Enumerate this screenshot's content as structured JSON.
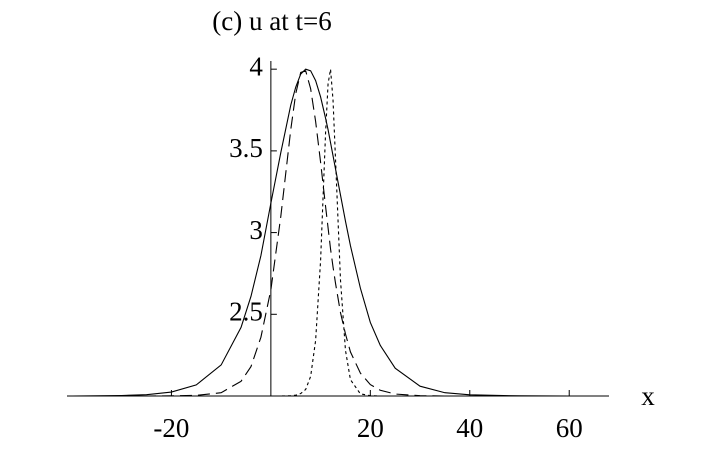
{
  "chart_data": {
    "type": "line",
    "title": "(c) u at t=6",
    "x_label": "x",
    "x": [
      -40,
      -35,
      -30,
      -25,
      -20,
      -15,
      -10,
      -6,
      -4,
      -2,
      0,
      2,
      4,
      5,
      6,
      7,
      8,
      9,
      10,
      11,
      11.5,
      12,
      12.5,
      13,
      14,
      15,
      16,
      18,
      20,
      22,
      25,
      30,
      35,
      40,
      50,
      60,
      68
    ],
    "series": [
      {
        "color": "#000000",
        "style": "solid",
        "values": [
          2.0,
          2.001,
          2.003,
          2.008,
          2.024,
          2.068,
          2.19,
          2.42,
          2.61,
          2.86,
          3.18,
          3.49,
          3.78,
          3.89,
          3.97,
          4.0,
          3.99,
          3.93,
          3.83,
          3.7,
          3.63,
          3.55,
          3.47,
          3.39,
          3.23,
          3.07,
          2.92,
          2.66,
          2.45,
          2.31,
          2.17,
          2.06,
          2.02,
          2.007,
          2.001,
          2.0,
          2.0
        ]
      },
      {
        "color": "#000000",
        "style": "dashed",
        "values": [
          2.0,
          2.0,
          2.0,
          2.0,
          2.001,
          2.004,
          2.02,
          2.09,
          2.18,
          2.36,
          2.65,
          3.1,
          3.63,
          3.85,
          3.98,
          3.99,
          3.88,
          3.68,
          3.43,
          3.16,
          3.03,
          2.9,
          2.79,
          2.69,
          2.51,
          2.38,
          2.27,
          2.14,
          2.07,
          2.035,
          2.012,
          2.002,
          2.0,
          2.0,
          2.0,
          2.0,
          2.0
        ]
      },
      {
        "color": "#000000",
        "style": "dotted",
        "values": [
          2.0,
          2.0,
          2.0,
          2.0,
          2.0,
          2.0,
          2.0,
          2.0,
          2.0,
          2.0,
          2.0,
          2.0,
          2.002,
          2.005,
          2.015,
          2.04,
          2.12,
          2.34,
          2.83,
          3.61,
          3.91,
          4.0,
          3.81,
          3.45,
          2.71,
          2.28,
          2.1,
          2.013,
          2.002,
          2.0,
          2.0,
          2.0,
          2.0,
          2.0,
          2.0,
          2.0,
          2.0
        ]
      }
    ],
    "xlim": [
      -41,
      68
    ],
    "ylim": [
      2,
      4.05
    ],
    "xticks": [
      -20,
      20,
      40,
      60
    ],
    "yticks": [
      2.5,
      3,
      3.5,
      4
    ]
  }
}
